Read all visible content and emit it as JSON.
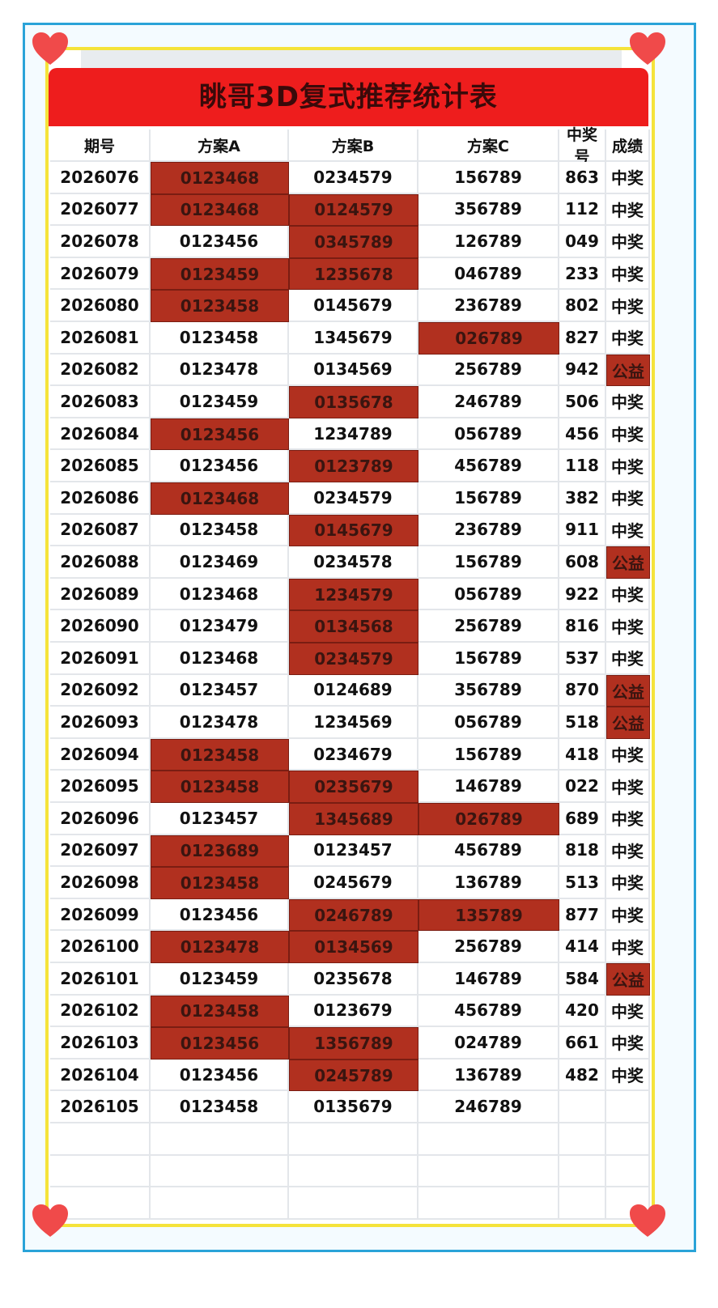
{
  "header": {
    "title": "眺哥3D复式推荐统计表"
  },
  "table": {
    "columns": [
      "期号",
      "方案A",
      "方案B",
      "方案C",
      "中奖号",
      "成绩"
    ],
    "rows": [
      [
        "2026076",
        "0123468",
        "0234579",
        "156789",
        "863",
        "中奖"
      ],
      [
        "2026077",
        "0123468",
        "0124579",
        "356789",
        "112",
        "中奖"
      ],
      [
        "2026078",
        "0123456",
        "0345789",
        "126789",
        "049",
        "中奖"
      ],
      [
        "2026079",
        "0123459",
        "1235678",
        "046789",
        "233",
        "中奖"
      ],
      [
        "2026080",
        "0123458",
        "0145679",
        "236789",
        "802",
        "中奖"
      ],
      [
        "2026081",
        "0123458",
        "1345679",
        "026789",
        "827",
        "中奖"
      ],
      [
        "2026082",
        "0123478",
        "0134569",
        "256789",
        "942",
        "公益"
      ],
      [
        "2026083",
        "0123459",
        "0135678",
        "246789",
        "506",
        "中奖"
      ],
      [
        "2026084",
        "0123456",
        "1234789",
        "056789",
        "456",
        "中奖"
      ],
      [
        "2026085",
        "0123456",
        "0123789",
        "456789",
        "118",
        "中奖"
      ],
      [
        "2026086",
        "0123468",
        "0234579",
        "156789",
        "382",
        "中奖"
      ],
      [
        "2026087",
        "0123458",
        "0145679",
        "236789",
        "911",
        "中奖"
      ],
      [
        "2026088",
        "0123469",
        "0234578",
        "156789",
        "608",
        "公益"
      ],
      [
        "2026089",
        "0123468",
        "1234579",
        "056789",
        "922",
        "中奖"
      ],
      [
        "2026090",
        "0123479",
        "0134568",
        "256789",
        "816",
        "中奖"
      ],
      [
        "2026091",
        "0123468",
        "0234579",
        "156789",
        "537",
        "中奖"
      ],
      [
        "2026092",
        "0123457",
        "0124689",
        "356789",
        "870",
        "公益"
      ],
      [
        "2026093",
        "0123478",
        "1234569",
        "056789",
        "518",
        "公益"
      ],
      [
        "2026094",
        "0123458",
        "0234679",
        "156789",
        "418",
        "中奖"
      ],
      [
        "2026095",
        "0123458",
        "0235679",
        "146789",
        "022",
        "中奖"
      ],
      [
        "2026096",
        "0123457",
        "1345689",
        "026789",
        "689",
        "中奖"
      ],
      [
        "2026097",
        "0123689",
        "0123457",
        "456789",
        "818",
        "中奖"
      ],
      [
        "2026098",
        "0123458",
        "0245679",
        "136789",
        "513",
        "中奖"
      ],
      [
        "2026099",
        "0123456",
        "0246789",
        "135789",
        "877",
        "中奖"
      ],
      [
        "2026100",
        "0123478",
        "0134569",
        "256789",
        "414",
        "中奖"
      ],
      [
        "2026101",
        "0123459",
        "0235678",
        "146789",
        "584",
        "公益"
      ],
      [
        "2026102",
        "0123458",
        "0123679",
        "456789",
        "420",
        "中奖"
      ],
      [
        "2026103",
        "0123456",
        "1356789",
        "024789",
        "661",
        "中奖"
      ],
      [
        "2026104",
        "0123456",
        "0245789",
        "136789",
        "482",
        "中奖"
      ],
      [
        "2026105",
        "0123458",
        "0135679",
        "246789"
      ]
    ],
    "highlighted": [
      [
        0,
        1
      ],
      [
        1,
        1
      ],
      [
        1,
        2
      ],
      [
        2,
        2
      ],
      [
        3,
        1
      ],
      [
        3,
        2
      ],
      [
        4,
        1
      ],
      [
        5,
        3
      ],
      [
        6,
        5
      ],
      [
        7,
        2
      ],
      [
        8,
        1
      ],
      [
        9,
        2
      ],
      [
        10,
        1
      ],
      [
        11,
        2
      ],
      [
        12,
        5
      ],
      [
        13,
        2
      ],
      [
        14,
        2
      ],
      [
        15,
        2
      ],
      [
        16,
        5
      ],
      [
        17,
        5
      ],
      [
        18,
        1
      ],
      [
        19,
        1
      ],
      [
        19,
        2
      ],
      [
        20,
        2
      ],
      [
        20,
        3
      ],
      [
        21,
        1
      ],
      [
        22,
        1
      ],
      [
        23,
        2
      ],
      [
        23,
        3
      ],
      [
        24,
        1
      ],
      [
        24,
        2
      ],
      [
        25,
        5
      ],
      [
        26,
        1
      ],
      [
        27,
        1
      ],
      [
        27,
        2
      ],
      [
        28,
        2
      ]
    ]
  }
}
